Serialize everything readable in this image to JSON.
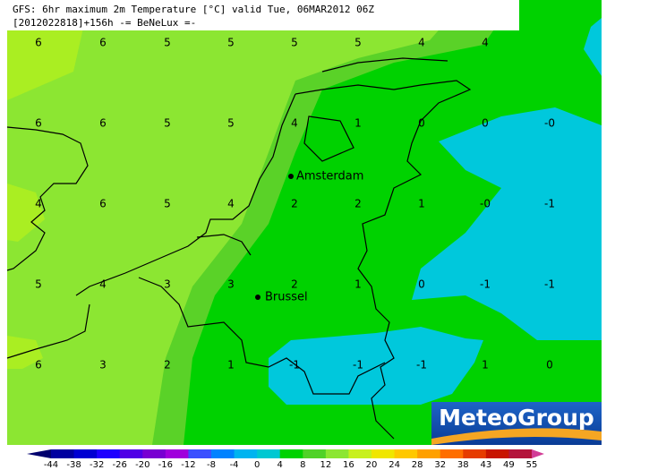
{
  "header": {
    "line1": "GFS: 6hr maximum 2m Temperature [°C] valid Tue, 06MAR2012 06Z",
    "line2": "[2012022818]+156h -= BeNeLux =-"
  },
  "cities": [
    {
      "label": "Amsterdam"
    },
    {
      "label": "Brussel"
    }
  ],
  "grid_labels": [
    [
      "6",
      "6",
      "5",
      "5",
      "5",
      "5",
      "4",
      "4"
    ],
    [
      "6",
      "6",
      "5",
      "5",
      "4",
      "1",
      "0",
      "0",
      "-0"
    ],
    [
      "4",
      "6",
      "5",
      "4",
      "2",
      "2",
      "1",
      "-0",
      "-1"
    ],
    [
      "5",
      "4",
      "3",
      "3",
      "2",
      "1",
      "0",
      "-1",
      "-1"
    ],
    [
      "6",
      "3",
      "2",
      "1",
      "-1",
      "-1",
      "-1",
      "1",
      "0"
    ]
  ],
  "colorbar": {
    "labels": [
      -44,
      -38,
      -32,
      -26,
      -20,
      -16,
      -12,
      -8,
      -4,
      0,
      4,
      8,
      12,
      16,
      20,
      24,
      28,
      32,
      38,
      43,
      49,
      55
    ],
    "colors": [
      "#00006e",
      "#0000a0",
      "#0000d2",
      "#1e00ff",
      "#5000e6",
      "#7800d2",
      "#a000dc",
      "#3c50ff",
      "#0082ff",
      "#00b4f0",
      "#00c8d2",
      "#00d200",
      "#50d228",
      "#8ce632",
      "#c8f01e",
      "#f0e600",
      "#ffc800",
      "#ffa000",
      "#ff6e00",
      "#e63c00",
      "#c81400",
      "#b4143c",
      "#d23c96"
    ]
  },
  "logo": "MeteoGroup"
}
